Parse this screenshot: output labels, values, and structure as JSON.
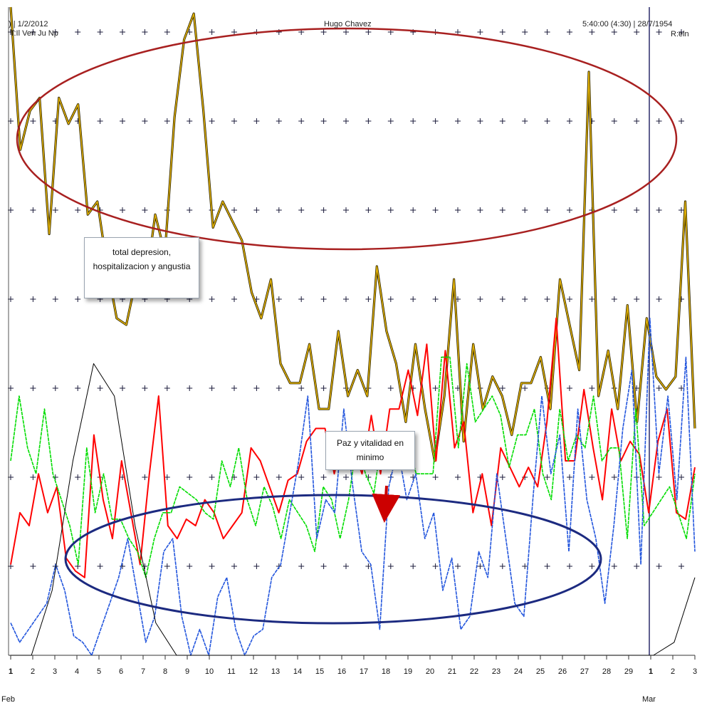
{
  "header": {
    "left_date": ") | 1/2/2012",
    "left_sub": "T:Il Ven Ju Np",
    "center": "Hugo Chavez",
    "right_date": "5:40:00 (4:30) | 28/7/1954",
    "right_sub": "R:eln"
  },
  "callouts": {
    "depression": "total depresion, hospitalizacion y angustia",
    "vitality": "Paz y vitalidad en minimo"
  },
  "chart_data": {
    "type": "line",
    "x_ticks": [
      "1",
      "2",
      "3",
      "4",
      "5",
      "6",
      "7",
      "8",
      "9",
      "10",
      "11",
      "12",
      "13",
      "14",
      "15",
      "16",
      "17",
      "18",
      "19",
      "20",
      "21",
      "22",
      "23",
      "24",
      "25",
      "26",
      "27",
      "28",
      "29",
      "1",
      "2",
      "3"
    ],
    "month_labels": [
      "Feb",
      "Mar"
    ],
    "ylim": [
      0,
      100
    ],
    "grid": true,
    "series": [
      {
        "color": "#e0b000",
        "y": [
          100,
          78,
          84,
          86,
          65,
          86,
          82,
          85,
          68,
          70,
          60,
          52,
          51,
          58,
          57,
          68,
          62,
          83,
          95,
          99,
          84,
          66,
          70,
          67,
          64,
          56,
          52,
          58,
          45,
          42,
          42,
          48,
          38,
          38,
          50,
          40,
          44,
          40,
          60,
          50,
          45,
          36,
          48,
          38,
          30,
          40,
          58,
          33,
          48,
          38,
          43,
          40,
          34,
          42,
          42,
          46,
          38,
          58,
          51,
          44,
          90,
          40,
          47,
          38,
          54,
          36,
          52,
          43,
          41,
          43,
          70,
          35
        ]
      },
      {
        "color": "#ff0000",
        "y": [
          14,
          22,
          20,
          28,
          22,
          26,
          15,
          13,
          12,
          34,
          24,
          18,
          30,
          22,
          14,
          28,
          40,
          20,
          18,
          21,
          20,
          24,
          22,
          18,
          20,
          22,
          32,
          30,
          26,
          22,
          27,
          28,
          33,
          35,
          35,
          28,
          34,
          32,
          28,
          37,
          28,
          38,
          38,
          44,
          37,
          48,
          30,
          47,
          32,
          36,
          22,
          28,
          20,
          32,
          29,
          26,
          29,
          26,
          36,
          52,
          30,
          30,
          41,
          32,
          24,
          38,
          30,
          33,
          31,
          22,
          33,
          38,
          22,
          21,
          29
        ]
      },
      {
        "color": "#00dd00",
        "y": [
          30,
          40,
          32,
          28,
          38,
          28,
          24,
          20,
          14,
          32,
          22,
          28,
          21,
          21,
          18,
          16,
          12,
          18,
          22,
          22,
          26,
          25,
          24,
          22,
          21,
          30,
          26,
          32,
          24,
          20,
          26,
          23,
          18,
          24,
          22,
          20,
          16,
          26,
          24,
          18,
          24,
          33,
          28,
          25,
          34,
          30,
          32,
          33,
          28,
          28,
          28,
          46,
          46,
          32,
          45,
          36,
          38,
          40,
          37,
          29,
          34,
          34,
          38,
          28,
          24,
          38,
          30,
          34,
          32,
          40,
          30,
          32,
          32,
          18,
          38,
          20,
          22,
          24,
          26,
          22,
          18,
          28
        ]
      },
      {
        "color": "#2255dd",
        "y": [
          5,
          2,
          4,
          6,
          8,
          14,
          10,
          3,
          2,
          0,
          4,
          8,
          12,
          18,
          10,
          2,
          6,
          16,
          18,
          6,
          0,
          4,
          0,
          9,
          12,
          4,
          0,
          3,
          4,
          12,
          14,
          22,
          30,
          40,
          18,
          24,
          22,
          38,
          26,
          16,
          14,
          4,
          26,
          32,
          24,
          28,
          18,
          22,
          10,
          15,
          4,
          6,
          16,
          12,
          28,
          18,
          8,
          6,
          24,
          40,
          28,
          34,
          16,
          38,
          24,
          18,
          8,
          20,
          35,
          44,
          14,
          52,
          28,
          40,
          24,
          46,
          16
        ]
      },
      {
        "color": "#000000",
        "y": [
          0,
          0,
          10,
          30,
          45,
          40,
          20,
          5,
          0,
          0,
          0,
          0,
          0,
          0,
          0,
          0,
          0,
          0,
          0,
          0,
          0,
          0,
          0,
          0,
          0,
          0,
          0,
          0,
          0,
          0,
          0,
          0,
          2,
          12
        ]
      }
    ]
  }
}
